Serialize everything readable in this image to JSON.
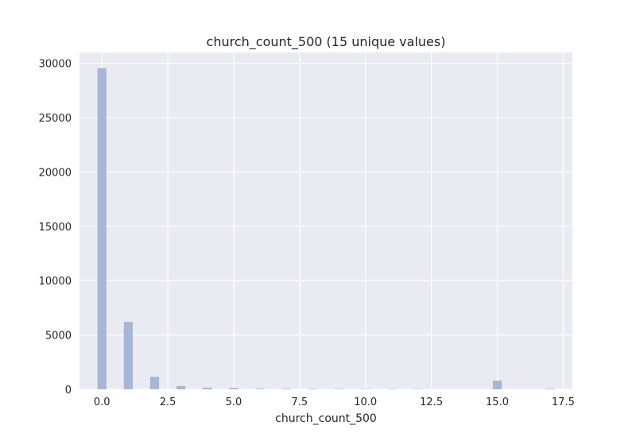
{
  "chart_data": {
    "type": "bar",
    "title": "church_count_500 (15 unique values)",
    "xlabel": "church_count_500",
    "ylabel": "",
    "xlim": [
      -0.85,
      17.85
    ],
    "ylim": [
      0,
      31000
    ],
    "x_ticks": [
      0.0,
      2.5,
      5.0,
      7.5,
      10.0,
      12.5,
      15.0,
      17.5
    ],
    "x_tick_labels": [
      "0.0",
      "2.5",
      "5.0",
      "7.5",
      "10.0",
      "12.5",
      "15.0",
      "17.5"
    ],
    "y_ticks": [
      0,
      5000,
      10000,
      15000,
      20000,
      25000,
      30000
    ],
    "y_tick_labels": [
      "0",
      "5000",
      "10000",
      "15000",
      "20000",
      "25000",
      "30000"
    ],
    "bar_width": 0.34,
    "bars": [
      {
        "x": 0,
        "value": 29550
      },
      {
        "x": 1,
        "value": 6200
      },
      {
        "x": 2,
        "value": 1150
      },
      {
        "x": 3,
        "value": 300
      },
      {
        "x": 4,
        "value": 150
      },
      {
        "x": 5,
        "value": 120
      },
      {
        "x": 6,
        "value": 60
      },
      {
        "x": 7,
        "value": 50
      },
      {
        "x": 8,
        "value": 40
      },
      {
        "x": 9,
        "value": 40
      },
      {
        "x": 10,
        "value": 30
      },
      {
        "x": 11,
        "value": 30
      },
      {
        "x": 12,
        "value": 30
      },
      {
        "x": 15,
        "value": 800
      },
      {
        "x": 17,
        "value": 50
      }
    ],
    "grid": true,
    "colors": {
      "background": "#eaeaf2",
      "grid": "#ffffff",
      "bar": "#a6b6d6"
    }
  }
}
